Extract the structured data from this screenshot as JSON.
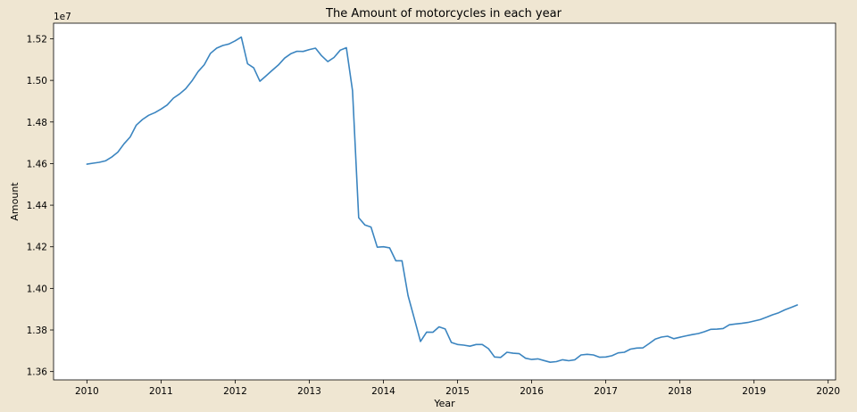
{
  "chart_data": {
    "type": "line",
    "title": "The Amount of motorcycles in each year",
    "xlabel": "Year",
    "ylabel": "Amount",
    "y_offset_label": "1e7",
    "xlim": [
      2009.55,
      2020.1
    ],
    "ylim": [
      13.56,
      15.275
    ],
    "x_ticks": [
      2010,
      2011,
      2012,
      2013,
      2014,
      2015,
      2016,
      2017,
      2018,
      2019,
      2020
    ],
    "x_tick_labels": [
      "2010",
      "2011",
      "2012",
      "2013",
      "2014",
      "2015",
      "2016",
      "2017",
      "2018",
      "2019",
      "2020"
    ],
    "y_ticks": [
      13.6,
      13.8,
      14.0,
      14.2,
      14.4,
      14.6,
      14.8,
      15.0,
      15.2
    ],
    "y_tick_labels": [
      "1.36",
      "1.38",
      "1.40",
      "1.42",
      "1.44",
      "1.46",
      "1.48",
      "1.50",
      "1.52"
    ],
    "grid": false,
    "line_color": "#3b85c0",
    "series": [
      {
        "x": [
          2010.0,
          2010.083,
          2010.167,
          2010.25,
          2010.333,
          2010.417,
          2010.5,
          2010.583,
          2010.667,
          2010.75,
          2010.833,
          2010.917,
          2011.0,
          2011.083,
          2011.167,
          2011.25,
          2011.333,
          2011.417,
          2011.5,
          2011.583,
          2011.667,
          2011.75,
          2011.833,
          2011.917,
          2012.0,
          2012.083,
          2012.167,
          2012.25,
          2012.333,
          2012.417,
          2012.5,
          2012.583,
          2012.667,
          2012.75,
          2012.833,
          2012.917,
          2013.0,
          2013.083,
          2013.167,
          2013.25,
          2013.333,
          2013.417,
          2013.5,
          2013.583,
          2013.667,
          2013.75,
          2013.833,
          2013.917,
          2014.0,
          2014.083,
          2014.167,
          2014.25,
          2014.333,
          2014.417,
          2014.5,
          2014.583,
          2014.667,
          2014.75,
          2014.833,
          2014.917,
          2015.0,
          2015.083,
          2015.167,
          2015.25,
          2015.333,
          2015.417,
          2015.5,
          2015.583,
          2015.667,
          2015.75,
          2015.833,
          2015.917,
          2016.0,
          2016.083,
          2016.167,
          2016.25,
          2016.333,
          2016.417,
          2016.5,
          2016.583,
          2016.667,
          2016.75,
          2016.833,
          2016.917,
          2017.0,
          2017.083,
          2017.167,
          2017.25,
          2017.333,
          2017.417,
          2017.5,
          2017.583,
          2017.667,
          2017.75,
          2017.833,
          2017.917,
          2018.0,
          2018.083,
          2018.167,
          2018.25,
          2018.333,
          2018.417,
          2018.5,
          2018.583,
          2018.667,
          2018.75,
          2018.833,
          2018.917,
          2019.0,
          2019.083,
          2019.167,
          2019.25,
          2019.333,
          2019.417,
          2019.5,
          2019.583
        ],
        "values": [
          14.597,
          14.602,
          14.606,
          14.613,
          14.631,
          14.655,
          14.695,
          14.728,
          14.785,
          14.812,
          14.832,
          14.845,
          14.862,
          14.882,
          14.915,
          14.935,
          14.96,
          14.997,
          15.042,
          15.075,
          15.13,
          15.155,
          15.168,
          15.175,
          15.19,
          15.208,
          15.08,
          15.06,
          14.996,
          15.022,
          15.048,
          15.074,
          15.107,
          15.128,
          15.14,
          15.139,
          15.148,
          15.155,
          15.118,
          15.09,
          15.11,
          15.145,
          15.157,
          14.95,
          14.34,
          14.305,
          14.295,
          14.198,
          14.2,
          14.195,
          14.133,
          14.133,
          13.965,
          13.855,
          13.745,
          13.79,
          13.789,
          13.815,
          13.805,
          13.74,
          13.73,
          13.727,
          13.722,
          13.73,
          13.73,
          13.71,
          13.67,
          13.668,
          13.693,
          13.688,
          13.686,
          13.664,
          13.658,
          13.661,
          13.653,
          13.645,
          13.648,
          13.657,
          13.652,
          13.657,
          13.68,
          13.683,
          13.68,
          13.669,
          13.67,
          13.676,
          13.69,
          13.693,
          13.708,
          13.713,
          13.714,
          13.734,
          13.756,
          13.766,
          13.77,
          13.758,
          13.765,
          13.772,
          13.778,
          13.783,
          13.792,
          13.803,
          13.804,
          13.807,
          13.825,
          13.829,
          13.832,
          13.836,
          13.843,
          13.85,
          13.861,
          13.873,
          13.883,
          13.897,
          13.908,
          13.92
        ]
      }
    ]
  }
}
